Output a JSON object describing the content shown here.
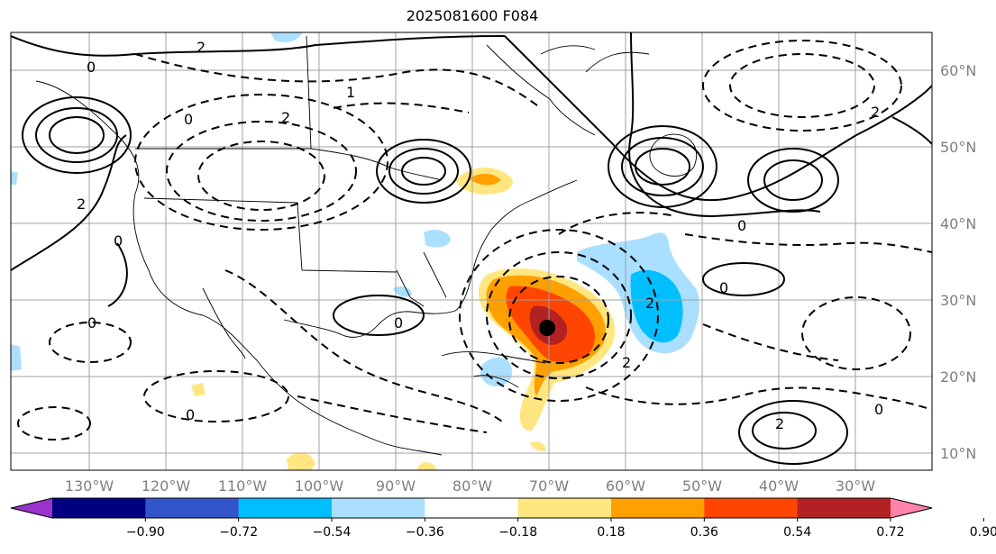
{
  "title": "2025081600 F084",
  "lon_labels": [
    "130°W",
    "120°W",
    "110°W",
    "100°W",
    "90°W",
    "80°W",
    "70°W",
    "60°W",
    "50°W",
    "40°W",
    "30°W"
  ],
  "lat_labels": [
    "60°N",
    "50°N",
    "40°N",
    "30°N",
    "20°N",
    "10°N"
  ],
  "contour_labels": [
    "0",
    "2",
    "0",
    "2",
    "0",
    "2",
    "0",
    "0",
    "2",
    "0",
    "2",
    "0",
    "2",
    "0",
    "2",
    "0",
    "1"
  ],
  "colorbar": {
    "colors": [
      "#9933cc",
      "#000080",
      "#3355cc",
      "#00bfff",
      "#aadfff",
      "#ffffff",
      "#ffe680",
      "#ffa000",
      "#ff4500",
      "#b22222",
      "#ff82ab"
    ],
    "ticks": [
      "−0.90",
      "−0.72",
      "−0.54",
      "−0.36",
      "−0.18",
      "0.18",
      "0.36",
      "0.54",
      "0.72",
      "0.90"
    ]
  },
  "center_marker": "storm-center"
}
